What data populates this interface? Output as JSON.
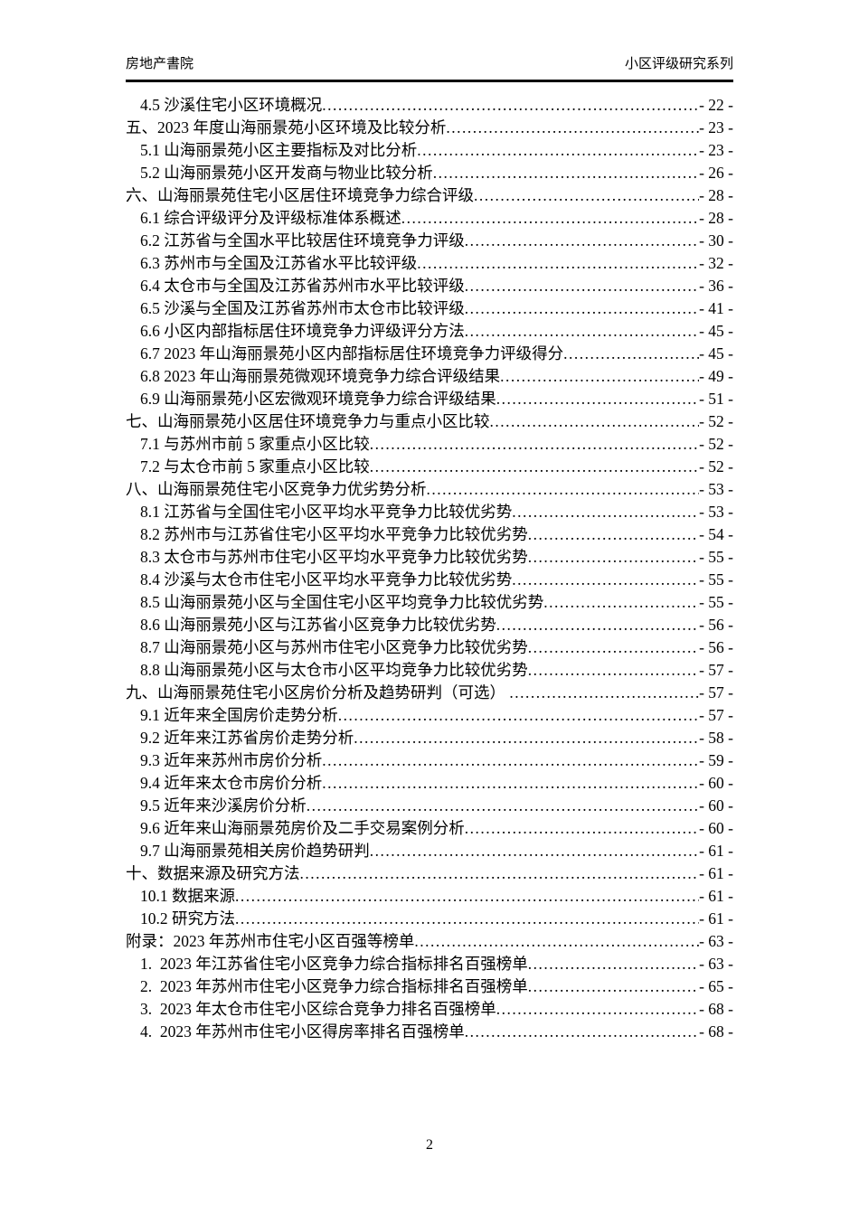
{
  "header": {
    "left": "房地产書院",
    "right": "小区评级研究系列"
  },
  "toc": {
    "leader_char": ".",
    "entries": [
      {
        "level": 2,
        "title": "4.5 沙溪住宅小区环境概况",
        "page": "- 22 -"
      },
      {
        "level": 1,
        "title": "五、2023 年度山海丽景苑小区环境及比较分析",
        "page": "- 23 -"
      },
      {
        "level": 2,
        "title": "5.1 山海丽景苑小区主要指标及对比分析",
        "page": "- 23 -"
      },
      {
        "level": 2,
        "title": "5.2 山海丽景苑小区开发商与物业比较分析",
        "page": "- 26 -"
      },
      {
        "level": 1,
        "title": "六、山海丽景苑住宅小区居住环境竞争力综合评级",
        "page": "- 28 -"
      },
      {
        "level": 2,
        "title": "6.1 综合评级评分及评级标准体系概述",
        "page": "- 28 -"
      },
      {
        "level": 2,
        "title": "6.2 江苏省与全国水平比较居住环境竞争力评级",
        "page": "- 30 -"
      },
      {
        "level": 2,
        "title": "6.3 苏州市与全国及江苏省水平比较评级",
        "page": "- 32 -"
      },
      {
        "level": 2,
        "title": "6.4 太仓市与全国及江苏省苏州市水平比较评级",
        "page": "- 36 -"
      },
      {
        "level": 2,
        "title": "6.5 沙溪与全国及江苏省苏州市太仓市比较评级",
        "page": "- 41 -"
      },
      {
        "level": 2,
        "title": "6.6 小区内部指标居住环境竞争力评级评分方法",
        "page": "- 45 -"
      },
      {
        "level": 2,
        "title": "6.7 2023 年山海丽景苑小区内部指标居住环境竞争力评级得分",
        "page": "- 45 -"
      },
      {
        "level": 2,
        "title": "6.8 2023 年山海丽景苑微观环境竞争力综合评级结果",
        "page": "- 49 -"
      },
      {
        "level": 2,
        "title": "6.9 山海丽景苑小区宏微观环境竞争力综合评级结果",
        "page": "- 51 -"
      },
      {
        "level": 1,
        "title": "七、山海丽景苑小区居住环境竞争力与重点小区比较",
        "page": "- 52 -"
      },
      {
        "level": 2,
        "title": "7.1 与苏州市前 5 家重点小区比较",
        "page": "- 52 -"
      },
      {
        "level": 2,
        "title": "7.2 与太仓市前 5 家重点小区比较",
        "page": "- 52 -"
      },
      {
        "level": 1,
        "title": "八、山海丽景苑住宅小区竞争力优劣势分析",
        "page": "- 53 -"
      },
      {
        "level": 2,
        "title": "8.1 江苏省与全国住宅小区平均水平竞争力比较优劣势",
        "page": "- 53 -"
      },
      {
        "level": 2,
        "title": "8.2 苏州市与江苏省住宅小区平均水平竞争力比较优劣势",
        "page": "- 54 -"
      },
      {
        "level": 2,
        "title": "8.3 太仓市与苏州市住宅小区平均水平竞争力比较优劣势",
        "page": "- 55 -"
      },
      {
        "level": 2,
        "title": "8.4 沙溪与太仓市住宅小区平均水平竞争力比较优劣势",
        "page": "- 55 -"
      },
      {
        "level": 2,
        "title": "8.5 山海丽景苑小区与全国住宅小区平均竞争力比较优劣势",
        "page": "- 55 -"
      },
      {
        "level": 2,
        "title": "8.6 山海丽景苑小区与江苏省小区竞争力比较优劣势",
        "page": "- 56 -"
      },
      {
        "level": 2,
        "title": "8.7 山海丽景苑小区与苏州市住宅小区竞争力比较优劣势",
        "page": "- 56 -"
      },
      {
        "level": 2,
        "title": "8.8 山海丽景苑小区与太仓市小区平均竞争力比较优劣势",
        "page": "- 57 -"
      },
      {
        "level": 1,
        "title": "九、山海丽景苑住宅小区房价分析及趋势研判（可选） ",
        "page": "- 57 -"
      },
      {
        "level": 2,
        "title": "9.1 近年来全国房价走势分析",
        "page": "- 57 -"
      },
      {
        "level": 2,
        "title": "9.2 近年来江苏省房价走势分析",
        "page": "- 58 -"
      },
      {
        "level": 2,
        "title": "9.3 近年来苏州市房价分析",
        "page": "- 59 -"
      },
      {
        "level": 2,
        "title": "9.4 近年来太仓市房价分析",
        "page": "- 60 -"
      },
      {
        "level": 2,
        "title": "9.5 近年来沙溪房价分析",
        "page": "- 60 -"
      },
      {
        "level": 2,
        "title": "9.6 近年来山海丽景苑房价及二手交易案例分析",
        "page": "- 60 -"
      },
      {
        "level": 2,
        "title": "9.7 山海丽景苑相关房价趋势研判",
        "page": "- 61 -"
      },
      {
        "level": 1,
        "title": "十、数据来源及研究方法",
        "page": "- 61 -"
      },
      {
        "level": 2,
        "title": "10.1 数据来源",
        "page": "- 61 -"
      },
      {
        "level": 2,
        "title": "10.2 研究方法",
        "page": "- 61 -"
      },
      {
        "level": 1,
        "title": "附录：2023 年苏州市住宅小区百强等榜单",
        "page": "- 63 -"
      },
      {
        "level": 2,
        "title": "1.  2023 年江苏省住宅小区竞争力综合指标排名百强榜单",
        "page": "- 63 -"
      },
      {
        "level": 2,
        "title": "2.  2023 年苏州市住宅小区竞争力综合指标排名百强榜单",
        "page": "- 65 -"
      },
      {
        "level": 2,
        "title": "3.  2023 年太仓市住宅小区综合竞争力排名百强榜单",
        "page": "- 68 -"
      },
      {
        "level": 2,
        "title": "4.  2023 年苏州市住宅小区得房率排名百强榜单",
        "page": "- 68 -"
      }
    ]
  },
  "footer": {
    "page_number": "2"
  }
}
